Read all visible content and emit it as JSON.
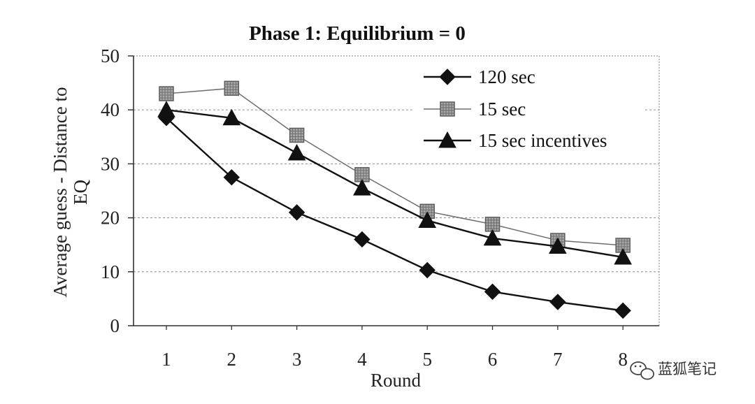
{
  "chart_data": {
    "type": "line",
    "title": "Phase 1: Equilibrium = 0",
    "xlabel": "Round",
    "ylabel_line1": "Average guess - Distance to",
    "ylabel_line2": "EQ",
    "x": [
      1,
      2,
      3,
      4,
      5,
      6,
      7,
      8
    ],
    "x_tick_labels": [
      "1",
      "2",
      "3",
      "4",
      "5",
      "6",
      "7",
      "8"
    ],
    "ylim": [
      0,
      50
    ],
    "y_ticks": [
      0,
      10,
      20,
      30,
      40,
      50
    ],
    "y_tick_labels": [
      "0",
      "10",
      "20",
      "30",
      "40",
      "50"
    ],
    "grid": "horizontal dashed",
    "legend_position": "top-right",
    "series": [
      {
        "name": "120 sec",
        "marker": "diamond",
        "color": "#111111",
        "values": [
          38.5,
          27.5,
          21,
          16,
          10.3,
          6.3,
          4.4,
          2.8
        ]
      },
      {
        "name": "15 sec",
        "marker": "square",
        "color": "#6e6e6e",
        "values": [
          43,
          44,
          35.3,
          28,
          21.2,
          18.8,
          15.8,
          14.9
        ]
      },
      {
        "name": "15 sec incentives",
        "marker": "triangle",
        "color": "#111111",
        "values": [
          40,
          38.5,
          32,
          25.5,
          19.5,
          16.2,
          14.7,
          12.7
        ]
      }
    ]
  },
  "watermark": {
    "text": "蓝狐笔记",
    "icon": "wechat-icon"
  }
}
